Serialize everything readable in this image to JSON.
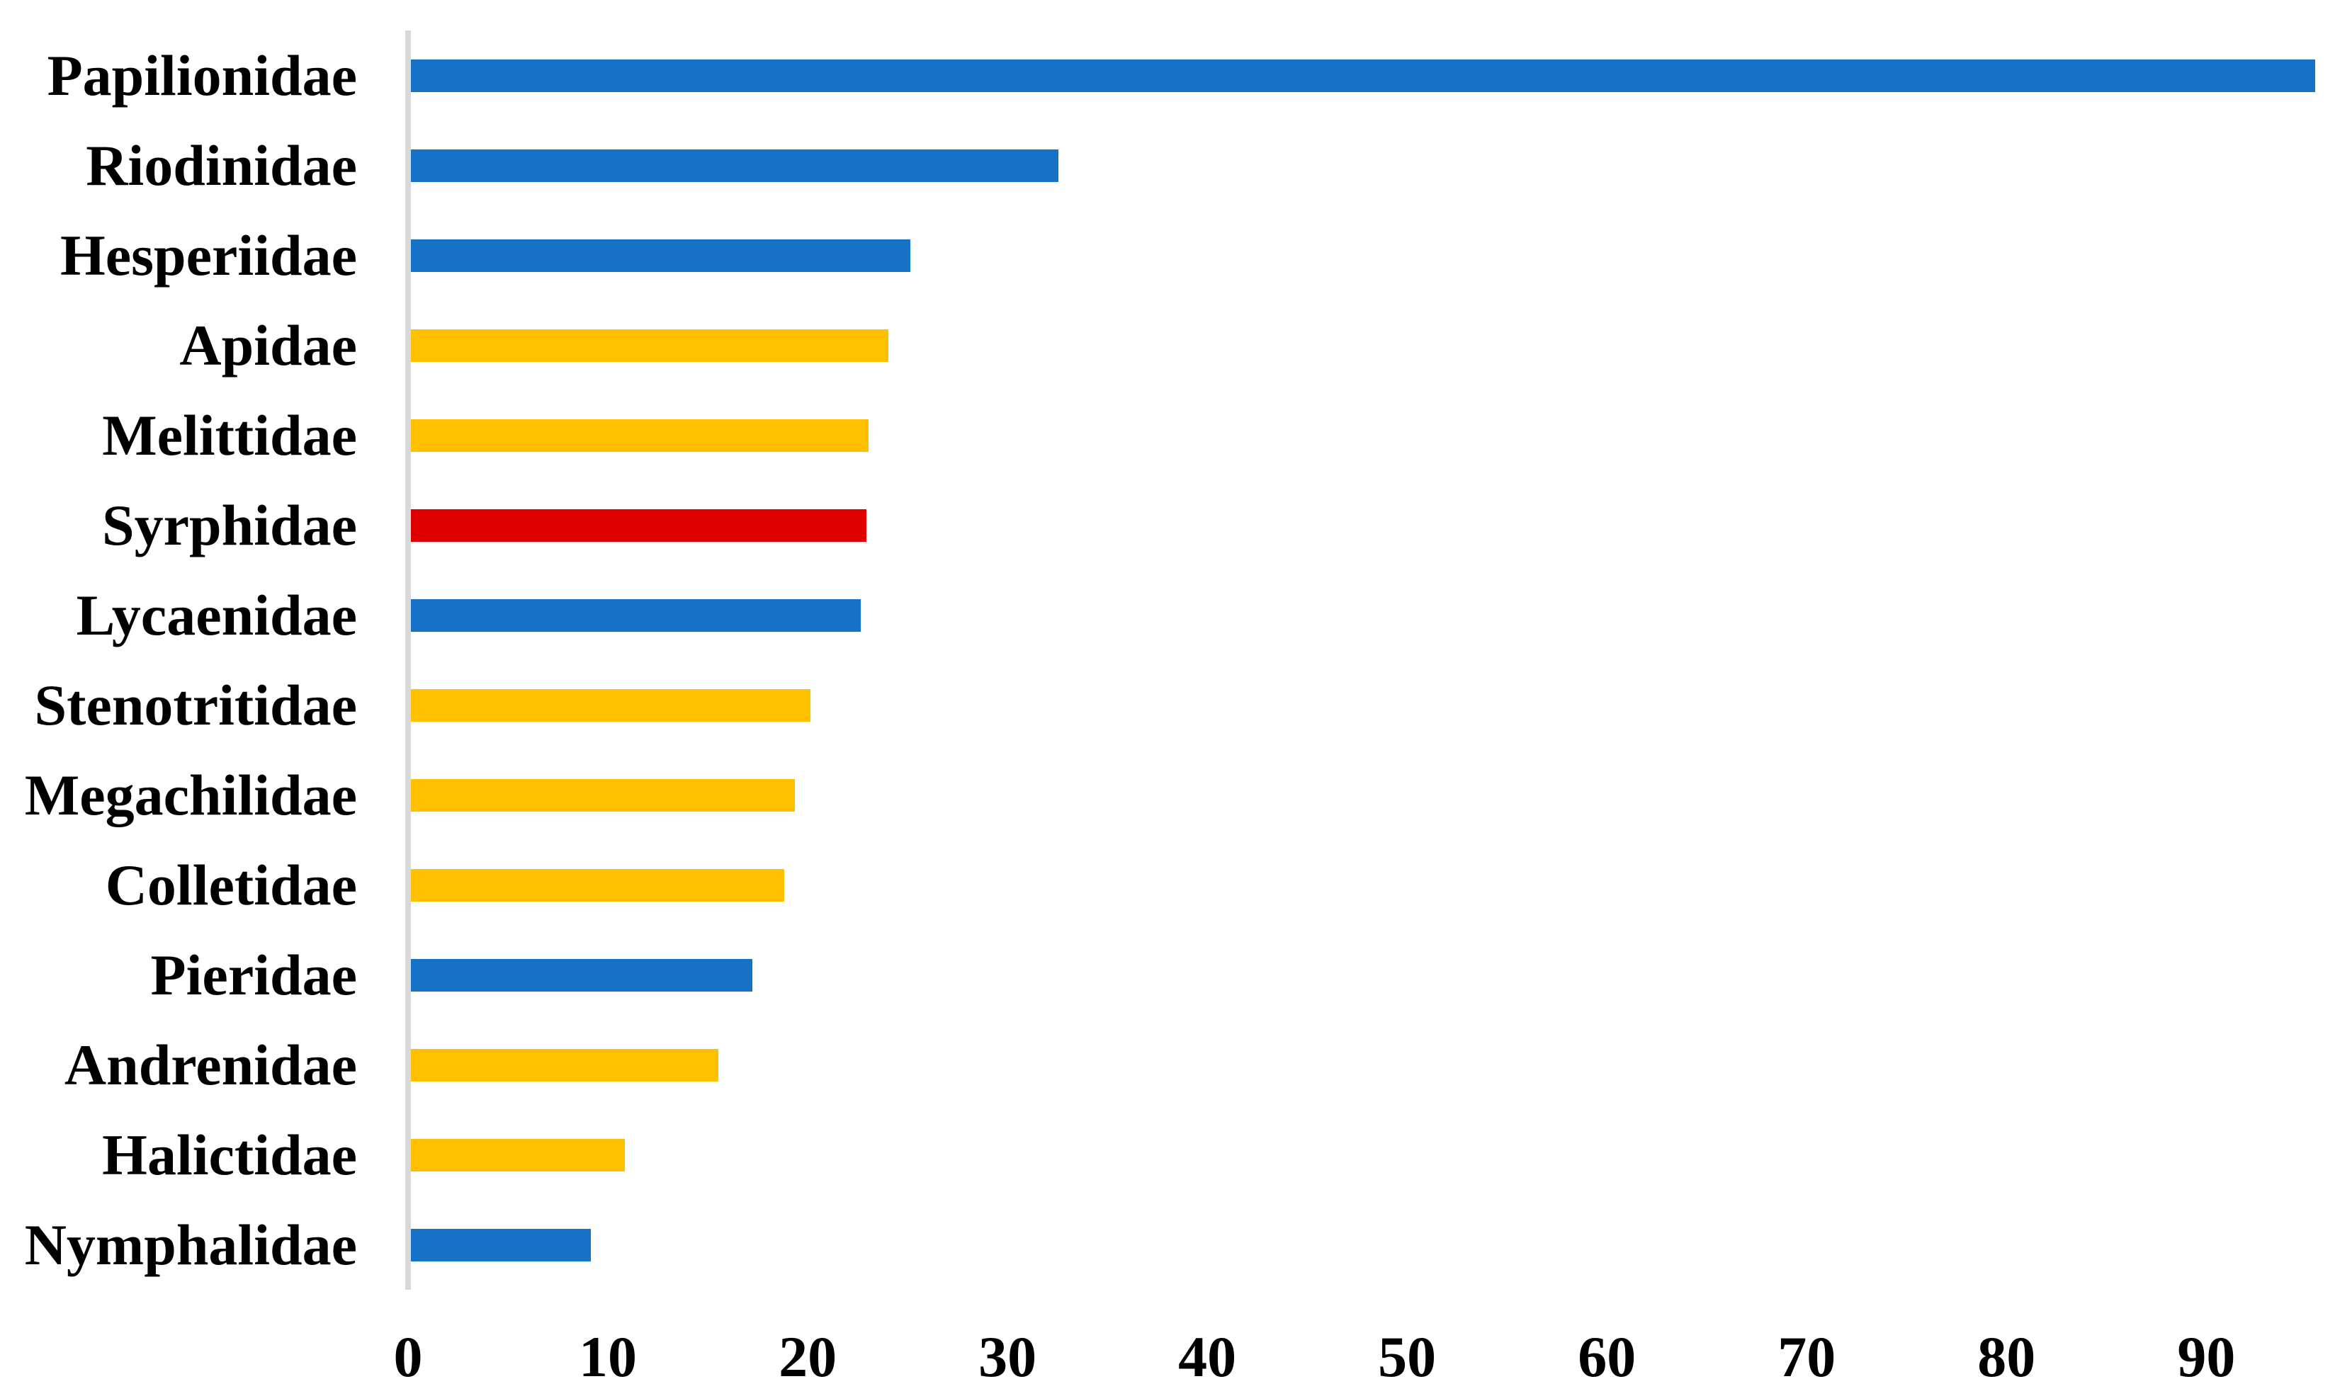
{
  "chart_data": {
    "type": "bar",
    "orientation": "horizontal",
    "title": "",
    "xlabel": "",
    "ylabel": "",
    "grid": false,
    "legend": "none",
    "xlim": [
      0,
      96.3
    ],
    "x_ticks": [
      0,
      10,
      20,
      30,
      40,
      50,
      60,
      70,
      80,
      90
    ],
    "x_tick_labels": [
      "0",
      "10",
      "20",
      "30",
      "40",
      "50",
      "60",
      "70",
      "80",
      "90"
    ],
    "axis_line_color": "#D9D9D9",
    "text_color": "#000000",
    "palette": {
      "blue": "#1772C7",
      "gold": "#FFC000",
      "red": "#DE0000"
    },
    "categories": [
      "Papilionidae",
      "Riodinidae",
      "Hesperiidae",
      "Apidae",
      "Melittidae",
      "Syrphidae",
      "Lycaenidae",
      "Stenotritidae",
      "Megachilidae",
      "Colletidae",
      "Pieridae",
      "Andrenidae",
      "Halictidae",
      "Nymphalidae"
    ],
    "bars": [
      {
        "label": "Papilionidae",
        "value": 95.3,
        "color": "#1772C7"
      },
      {
        "label": "Riodinidae",
        "value": 32.4,
        "color": "#1772C7"
      },
      {
        "label": "Hesperiidae",
        "value": 25.0,
        "color": "#1772C7"
      },
      {
        "label": "Apidae",
        "value": 23.9,
        "color": "#FFC000"
      },
      {
        "label": "Melittidae",
        "value": 22.9,
        "color": "#FFC000"
      },
      {
        "label": "Syrphidae",
        "value": 22.8,
        "color": "#DE0000"
      },
      {
        "label": "Lycaenidae",
        "value": 22.5,
        "color": "#1772C7"
      },
      {
        "label": "Stenotritidae",
        "value": 20.0,
        "color": "#FFC000"
      },
      {
        "label": "Megachilidae",
        "value": 19.2,
        "color": "#FFC000"
      },
      {
        "label": "Colletidae",
        "value": 18.7,
        "color": "#FFC000"
      },
      {
        "label": "Pieridae",
        "value": 17.1,
        "color": "#1772C7"
      },
      {
        "label": "Andrenidae",
        "value": 15.4,
        "color": "#FFC000"
      },
      {
        "label": "Halictidae",
        "value": 10.7,
        "color": "#FFC000"
      },
      {
        "label": "Nymphalidae",
        "value": 9.0,
        "color": "#1772C7"
      }
    ]
  }
}
